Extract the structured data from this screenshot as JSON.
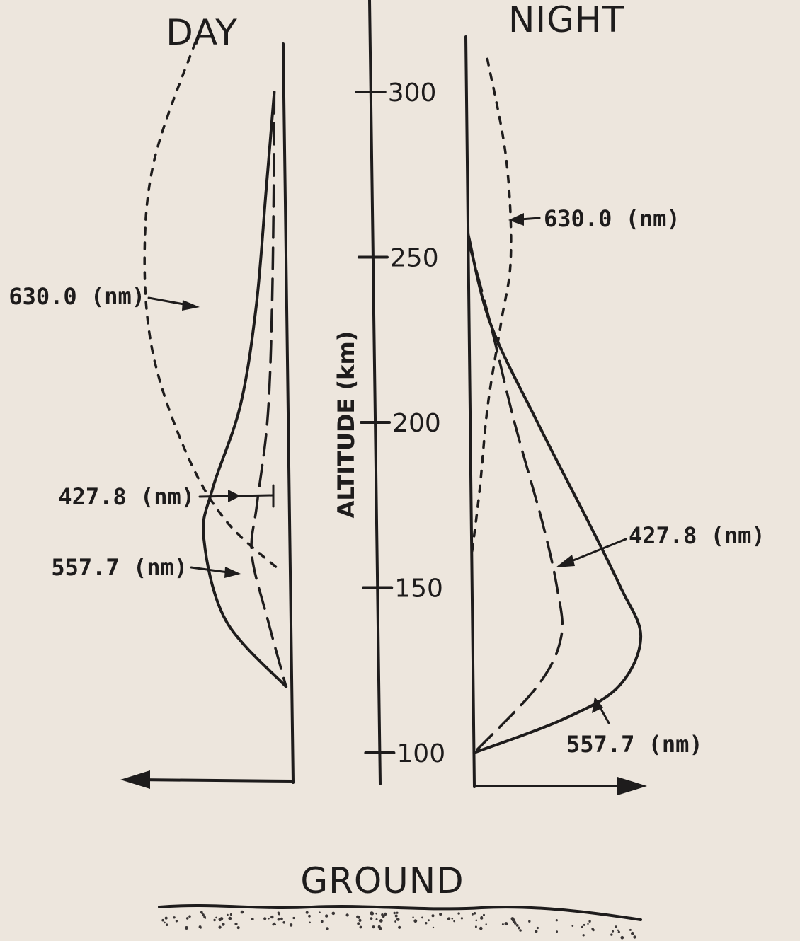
{
  "chart_data": {
    "type": "line",
    "ylabel": "ALTITUDE (km)",
    "yticks": [
      300,
      250,
      200,
      "150",
      100
    ],
    "ylim": [
      90,
      320
    ],
    "ground_label": "GROUND",
    "panels": [
      {
        "title": "DAY",
        "direction": "left",
        "series": [
          {
            "name": "630.0 (nm)",
            "style": "dotted",
            "altitude": [
              315,
              280,
              250,
              220,
              190,
              170,
              155
            ],
            "intensity": [
              0.46,
              0.68,
              0.74,
              0.7,
              0.53,
              0.33,
              0.05
            ]
          },
          {
            "name": "427.8 (nm)",
            "style": "solid",
            "altitude": [
              300,
              270,
              235,
              205,
              180,
              165,
              140,
              120
            ],
            "intensity": [
              0.05,
              0.1,
              0.16,
              0.25,
              0.4,
              0.45,
              0.34,
              0.03
            ]
          },
          {
            "name": "557.7 (nm)",
            "style": "dashed",
            "altitude": [
              300,
              270,
              230,
              200,
              175,
              160,
              140,
              120
            ],
            "intensity": [
              0.05,
              0.06,
              0.08,
              0.11,
              0.17,
              0.2,
              0.12,
              0.03
            ]
          }
        ]
      },
      {
        "title": "NIGHT",
        "direction": "right",
        "series": [
          {
            "name": "630.0 (nm)",
            "style": "dotted",
            "altitude": [
              310,
              280,
              250,
              230,
              205,
              180,
              160
            ],
            "intensity": [
              0.12,
              0.22,
              0.24,
              0.18,
              0.1,
              0.05,
              0.0
            ]
          },
          {
            "name": "427.8 (nm)",
            "style": "dashed",
            "altitude": [
              255,
              230,
              200,
              170,
              150,
              135,
              120,
              100
            ],
            "intensity": [
              0.0,
              0.12,
              0.25,
              0.4,
              0.48,
              0.5,
              0.36,
              0.0
            ]
          },
          {
            "name": "557.7 (nm)",
            "style": "solid",
            "altitude": [
              257,
              230,
              200,
              170,
              150,
              135,
              120,
              110,
              100
            ],
            "intensity": [
              0.0,
              0.12,
              0.38,
              0.66,
              0.84,
              0.95,
              0.82,
              0.5,
              0.0
            ]
          }
        ]
      }
    ]
  }
}
